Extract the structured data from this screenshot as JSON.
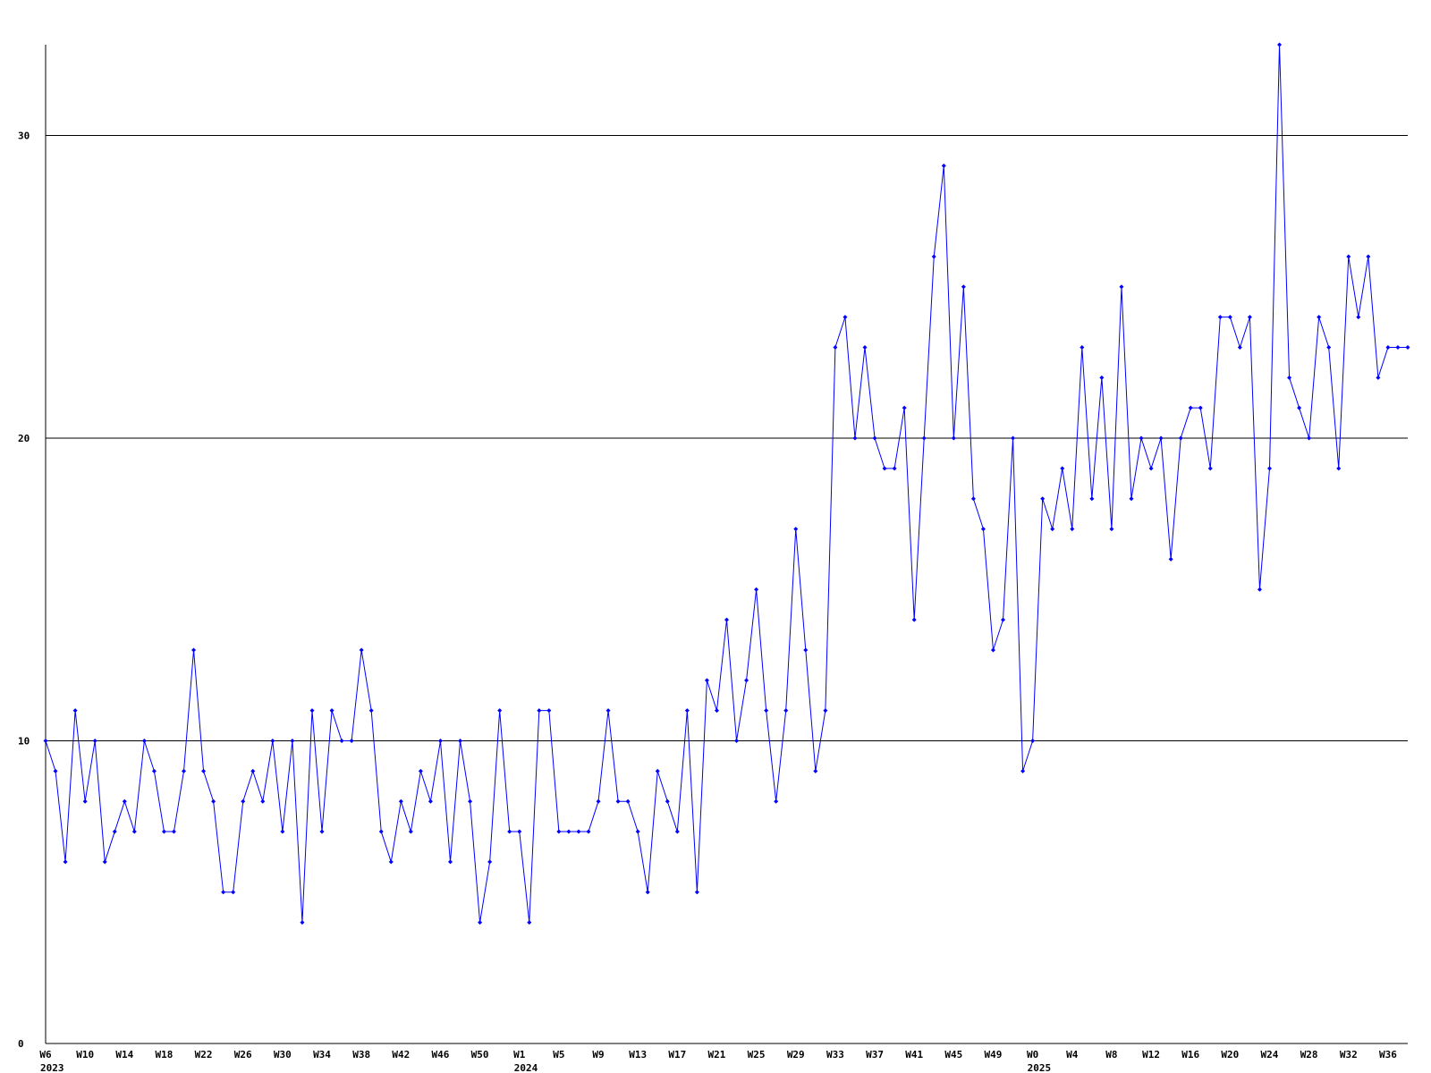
{
  "chart_data": {
    "type": "line",
    "categories": [
      "W6",
      null,
      null,
      null,
      "W10",
      null,
      null,
      null,
      "W14",
      null,
      null,
      null,
      "W18",
      null,
      null,
      null,
      "W22",
      null,
      null,
      null,
      "W26",
      null,
      null,
      null,
      "W30",
      null,
      null,
      null,
      "W34",
      null,
      null,
      null,
      "W38",
      null,
      null,
      null,
      "W42",
      null,
      null,
      null,
      "W46",
      null,
      null,
      null,
      "W50",
      null,
      null,
      null,
      "W1",
      null,
      null,
      null,
      "W5",
      null,
      null,
      null,
      "W9",
      null,
      null,
      null,
      "W13",
      null,
      null,
      null,
      "W17",
      null,
      null,
      null,
      "W21",
      null,
      null,
      null,
      "W25",
      null,
      null,
      null,
      "W29",
      null,
      null,
      null,
      "W33",
      null,
      null,
      null,
      "W37",
      null,
      null,
      null,
      "W41",
      null,
      null,
      null,
      "W45",
      null,
      null,
      null,
      "W49",
      null,
      null,
      null,
      "W0",
      null,
      null,
      null,
      "W4",
      null,
      null,
      null,
      "W8",
      null,
      null,
      null,
      "W12",
      null,
      null,
      null,
      "W16",
      null,
      null,
      null,
      "W20",
      null,
      null,
      null,
      "W24",
      null,
      null,
      null,
      "W28",
      null,
      null,
      null,
      "W32",
      null,
      null,
      null,
      "W36",
      null,
      null
    ],
    "year_labels": [
      "2023",
      null,
      null,
      null,
      null,
      null,
      null,
      null,
      null,
      null,
      null,
      null,
      null,
      null,
      null,
      null,
      null,
      null,
      null,
      null,
      null,
      null,
      null,
      null,
      null,
      null,
      null,
      null,
      null,
      null,
      null,
      null,
      null,
      null,
      null,
      null,
      null,
      null,
      null,
      null,
      null,
      null,
      null,
      null,
      null,
      null,
      null,
      null,
      "2024",
      null,
      null,
      null,
      null,
      null,
      null,
      null,
      null,
      null,
      null,
      null,
      null,
      null,
      null,
      null,
      null,
      null,
      null,
      null,
      null,
      null,
      null,
      null,
      null,
      null,
      null,
      null,
      null,
      null,
      null,
      null,
      null,
      null,
      null,
      null,
      null,
      null,
      null,
      null,
      null,
      null,
      null,
      null,
      null,
      null,
      null,
      null,
      null,
      null,
      null,
      null,
      "2025",
      null,
      null,
      null,
      null,
      null,
      null,
      null,
      null,
      null,
      null,
      null,
      null,
      null,
      null,
      null,
      null,
      null,
      null,
      null,
      null,
      null,
      null,
      null,
      null,
      null,
      null,
      null,
      null,
      null,
      null,
      null,
      null,
      null,
      null,
      null,
      null,
      null
    ],
    "series": [
      {
        "color": "#0000ff",
        "values": [
          10,
          9,
          6,
          11,
          8,
          10,
          6,
          7,
          8,
          7,
          10,
          9,
          7,
          7,
          9,
          13,
          9,
          8,
          5,
          5,
          8,
          9,
          8,
          10,
          7,
          10,
          4,
          11,
          7,
          11,
          10,
          10,
          13,
          11,
          7,
          6,
          8,
          7,
          9,
          8,
          10,
          6,
          10,
          8,
          4,
          6,
          11,
          7,
          7,
          4,
          11,
          11,
          7,
          7,
          7,
          7,
          8,
          11,
          8,
          8,
          7,
          5,
          9,
          8,
          7,
          11,
          5,
          12,
          11,
          14,
          10,
          12,
          15,
          11,
          8,
          11,
          17,
          13,
          9,
          11,
          23,
          24,
          20,
          23,
          20,
          19,
          19,
          21,
          14,
          20,
          26,
          29,
          20,
          25,
          18,
          17,
          13,
          14,
          20,
          9,
          10,
          18,
          17,
          19,
          17,
          23,
          18,
          22,
          17,
          25,
          18,
          20,
          19,
          20,
          16,
          20,
          21,
          21,
          19,
          24,
          24,
          23,
          24,
          15,
          19,
          33,
          22,
          21,
          20,
          24,
          23,
          19,
          26,
          24,
          26,
          22,
          23,
          23,
          23
        ]
      }
    ],
    "ylim": [
      0,
      33
    ],
    "yticks": [
      0,
      10,
      20,
      30
    ],
    "grid": true
  }
}
